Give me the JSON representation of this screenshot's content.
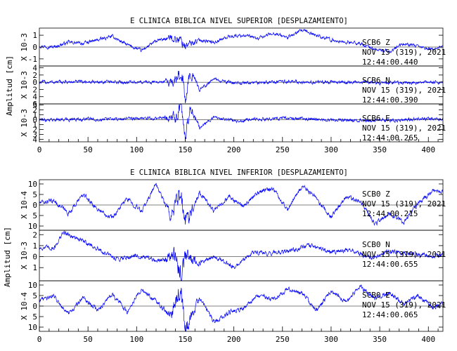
{
  "chart_data": [
    {
      "type": "line",
      "title": "E CLINICA BIBLICA NIVEL SUPERIOR [DESPLAZAMIENTO]",
      "ylabel": "Amplitud [cm]",
      "xlim": [
        0,
        415
      ],
      "xticks": [
        0,
        50,
        100,
        150,
        200,
        250,
        300,
        350,
        400
      ],
      "line_color": "#0000ff",
      "traces": [
        {
          "station": "SCB6",
          "component": "Z",
          "date": "NOV 15 (319), 2021",
          "time": "12:44:00.440",
          "scale_label": "X 10-3",
          "ylim": [
            -1.6,
            1.6
          ],
          "yticks": [
            -1,
            0,
            1
          ],
          "yticklabels": [
            "-1",
            "0",
            "1"
          ],
          "x": [
            0,
            15,
            30,
            45,
            60,
            75,
            90,
            105,
            120,
            135,
            145,
            150,
            165,
            180,
            195,
            210,
            225,
            240,
            255,
            270,
            285,
            300,
            315,
            330,
            345,
            360,
            375,
            390,
            405,
            415
          ],
          "y": [
            0.1,
            0.0,
            0.4,
            0.3,
            0.6,
            0.9,
            0.2,
            -0.3,
            0.5,
            0.8,
            0.6,
            0.1,
            0.6,
            0.4,
            0.9,
            1.0,
            0.7,
            1.2,
            0.8,
            1.4,
            1.0,
            0.6,
            0.4,
            0.3,
            -0.2,
            -0.4,
            0.3,
            0.0,
            -0.2,
            0.1
          ]
        },
        {
          "station": "SCB6",
          "component": "N",
          "date": "NOV 15 (319), 2021",
          "time": "12:44:00.390",
          "scale_label": "X 10-3",
          "ylim": [
            -6,
            4.5
          ],
          "yticks": [
            -6,
            -4,
            -2,
            0,
            2,
            4
          ],
          "yticklabels": [
            "6",
            "4",
            "2",
            "0",
            "2",
            "4"
          ],
          "x": [
            0,
            50,
            100,
            140,
            146,
            150,
            155,
            165,
            180,
            200,
            250,
            300,
            350,
            400,
            415
          ],
          "y": [
            0,
            0.1,
            0,
            0.2,
            4.0,
            -5.5,
            3.0,
            -2.0,
            0.8,
            -0.3,
            0.2,
            0,
            -0.2,
            0,
            0
          ]
        },
        {
          "station": "SCB6",
          "component": "E",
          "date": "NOV 15 (319), 2021",
          "time": "12:44:00.265",
          "scale_label": "X 10-3",
          "ylim": [
            -4.5,
            3.2
          ],
          "yticks": [
            -4,
            -3,
            -2,
            -1,
            0,
            1,
            2,
            3
          ],
          "yticklabels": [
            "4",
            "3",
            "2",
            "1",
            "0",
            "1",
            "2",
            "3"
          ],
          "x": [
            0,
            50,
            100,
            140,
            146,
            150,
            155,
            165,
            180,
            200,
            250,
            300,
            350,
            400,
            415
          ],
          "y": [
            0,
            0.1,
            0.2,
            0.4,
            2.8,
            -3.8,
            2.5,
            -1.5,
            0.5,
            -0.2,
            0.3,
            0,
            -0.2,
            0.2,
            0
          ]
        }
      ]
    },
    {
      "type": "line",
      "title": "E CLINICA BIBLICA NIVEL INFERIOR [DESPLAZAMIENTO]",
      "ylabel": "Amplitud [cm]",
      "xlim": [
        0,
        415
      ],
      "xticks": [
        0,
        50,
        100,
        150,
        200,
        250,
        300,
        350,
        400
      ],
      "line_color": "#0000ff",
      "traces": [
        {
          "station": "SCB0",
          "component": "Z",
          "date": "NOV 15 (319), 2021",
          "time": "12:44:00.215",
          "scale_label": "X 10-4",
          "ylim": [
            -12,
            12
          ],
          "yticks": [
            -10,
            -5,
            0,
            5,
            10
          ],
          "yticklabels": [
            "10",
            "5",
            "0",
            "5",
            "10"
          ],
          "x": [
            0,
            15,
            30,
            45,
            60,
            75,
            90,
            105,
            120,
            135,
            145,
            150,
            165,
            180,
            195,
            210,
            225,
            240,
            255,
            270,
            285,
            300,
            315,
            330,
            345,
            360,
            375,
            390,
            405,
            415
          ],
          "y": [
            1,
            2,
            -4,
            5,
            -2,
            -6,
            3,
            -3,
            10,
            -5,
            4,
            -8,
            6,
            -3,
            4,
            -1,
            6,
            8,
            -2,
            9,
            3,
            -6,
            4,
            2,
            -9,
            -4,
            -8,
            1,
            7,
            6
          ]
        },
        {
          "station": "SCB0",
          "component": "N",
          "date": "NOV 15 (319), 2021",
          "time": "12:44:00.655",
          "scale_label": "X 10-3",
          "ylim": [
            -2.2,
            2.4
          ],
          "yticks": [
            -1,
            0,
            1,
            2
          ],
          "yticklabels": [
            "1",
            "0",
            "1",
            "2"
          ],
          "x": [
            0,
            15,
            25,
            35,
            50,
            65,
            80,
            100,
            120,
            140,
            146,
            150,
            165,
            180,
            200,
            220,
            240,
            260,
            280,
            300,
            320,
            340,
            360,
            380,
            400,
            415
          ],
          "y": [
            0.8,
            0.8,
            2.2,
            1.8,
            1.2,
            0.4,
            -0.2,
            0.1,
            -0.4,
            0.2,
            -2.0,
            0.1,
            -0.6,
            0.0,
            -1.0,
            0.4,
            0.3,
            0.6,
            1.0,
            0.4,
            0.7,
            -0.2,
            0.5,
            0.3,
            0.1,
            0.1
          ]
        },
        {
          "station": "SCB0",
          "component": "E",
          "date": "NOV 15 (319), 2021",
          "time": "12:44:00.065",
          "scale_label": "X 10-4",
          "ylim": [
            -12,
            12
          ],
          "yticks": [
            -10,
            -5,
            0,
            5,
            10
          ],
          "yticklabels": [
            "10",
            "5",
            "0",
            "5",
            "10"
          ],
          "x": [
            0,
            15,
            30,
            45,
            60,
            75,
            90,
            105,
            120,
            135,
            145,
            150,
            165,
            180,
            195,
            210,
            225,
            240,
            255,
            270,
            285,
            300,
            315,
            330,
            345,
            360,
            375,
            390,
            405,
            415
          ],
          "y": [
            3,
            5,
            -4,
            4,
            -2,
            6,
            -3,
            8,
            2,
            -5,
            9,
            -11,
            4,
            -8,
            -3,
            -1,
            5,
            3,
            8,
            6,
            -2,
            7,
            2,
            9,
            4,
            6,
            1,
            5,
            -1,
            1
          ]
        }
      ]
    }
  ]
}
